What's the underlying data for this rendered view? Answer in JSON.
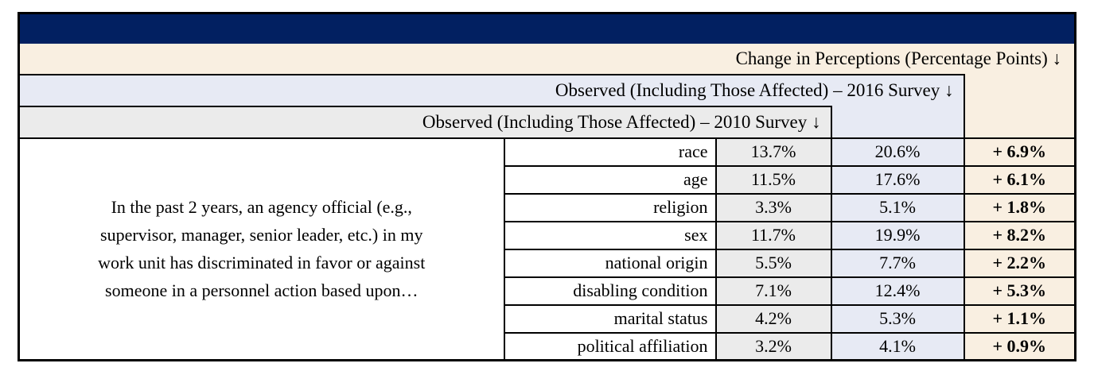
{
  "table": {
    "palette": {
      "navy_bar": "#022061",
      "cream": "#f9efe1",
      "light_blue": "#e7eaf4",
      "light_gray": "#ebebeb",
      "border": "#000000",
      "white": "#ffffff"
    },
    "title_bar_text": "",
    "headers": {
      "change": "Change in Perceptions (Percentage Points) ↓",
      "survey_2016": "Observed (Including Those Affected) – 2016 Survey ↓",
      "survey_2010": "Observed (Including Those Affected) – 2010 Survey ↓"
    },
    "question": {
      "full_text": "In the past 2 years, an agency official (e.g., supervisor, manager, senior leader, etc.) in my work unit has discriminated in favor or against someone in a personnel action based upon…",
      "lines": [
        "In the past 2 years, an agency official (e.g.,",
        "supervisor, manager, senior leader, etc.) in my",
        "work unit has discriminated in favor or against",
        "someone in a personnel action based upon…"
      ]
    },
    "rows": [
      {
        "category": "race",
        "survey_2010": "13.7%",
        "survey_2016": "20.6%",
        "change": "+ 6.9%"
      },
      {
        "category": "age",
        "survey_2010": "11.5%",
        "survey_2016": "17.6%",
        "change": "+ 6.1%"
      },
      {
        "category": "religion",
        "survey_2010": "3.3%",
        "survey_2016": "5.1%",
        "change": "+ 1.8%"
      },
      {
        "category": "sex",
        "survey_2010": "11.7%",
        "survey_2016": "19.9%",
        "change": "+ 8.2%"
      },
      {
        "category": "national origin",
        "survey_2010": "5.5%",
        "survey_2016": "7.7%",
        "change": "+ 2.2%"
      },
      {
        "category": "disabling condition",
        "survey_2010": "7.1%",
        "survey_2016": "12.4%",
        "change": "+ 5.3%"
      },
      {
        "category": "marital status",
        "survey_2010": "4.2%",
        "survey_2016": "5.3%",
        "change": "+ 1.1%"
      },
      {
        "category": "political affiliation",
        "survey_2010": "3.2%",
        "survey_2016": "4.1%",
        "change": "+ 0.9%"
      }
    ]
  }
}
